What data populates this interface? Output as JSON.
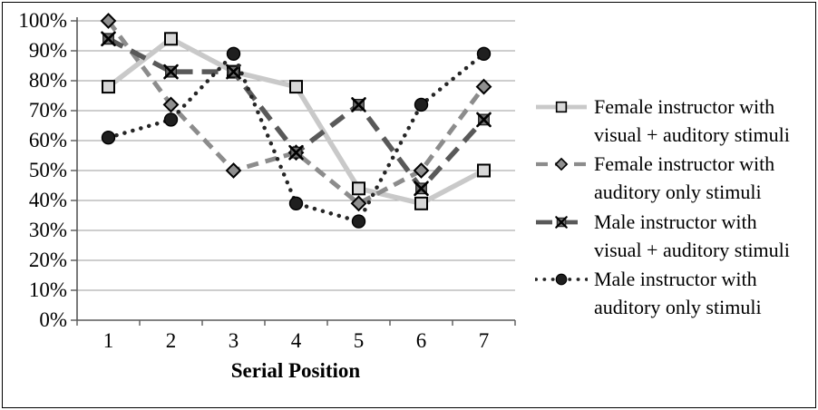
{
  "chart_data": {
    "type": "line",
    "title": "",
    "xlabel": "Serial Position",
    "ylabel": "",
    "x": [
      "1",
      "2",
      "3",
      "4",
      "5",
      "6",
      "7"
    ],
    "y_ticks": [
      "100%",
      "90%",
      "80%",
      "70%",
      "60%",
      "50%",
      "40%",
      "30%",
      "20%",
      "10%",
      "0%"
    ],
    "ylim": [
      0,
      100
    ],
    "grid": "horizontal",
    "grid_color": "#9e9e9e",
    "axis_color": "#595959",
    "legend_position": "right",
    "series": [
      {
        "id": "female-visual-auditory",
        "name": "Female instructor with visual + auditory stimuli",
        "label_lines": [
          "Female instructor with",
          "visual + auditory stimuli"
        ],
        "marker": "square",
        "line_style": "solid",
        "color": "#c9c9c9",
        "marker_fill": "#d8d8d8",
        "values": [
          78,
          94,
          83,
          78,
          44,
          39,
          50
        ]
      },
      {
        "id": "female-auditory-only",
        "name": "Female instructor with auditory only stimuli",
        "label_lines": [
          "Female instructor with",
          "auditory only stimuli"
        ],
        "marker": "diamond",
        "line_style": "dashed",
        "color": "#8c8c8c",
        "marker_fill": "#8f8f8f",
        "values": [
          100,
          72,
          50,
          56,
          39,
          50,
          78
        ]
      },
      {
        "id": "male-visual-auditory",
        "name": "Male instructor with visual + auditory stimuli",
        "label_lines": [
          "Male instructor with",
          "visual + auditory stimuli"
        ],
        "marker": "x-square",
        "line_style": "long-dash",
        "color": "#595959",
        "marker_fill": "#6e6e6e",
        "values": [
          94,
          83,
          83,
          56,
          72,
          44,
          67
        ]
      },
      {
        "id": "male-auditory-only",
        "name": "Male instructor with auditory only stimuli",
        "label_lines": [
          "Male instructor with",
          "auditory only stimuli"
        ],
        "marker": "circle",
        "line_style": "dotted",
        "color": "#262626",
        "marker_fill": "#1f1f1f",
        "values": [
          61,
          67,
          89,
          39,
          33,
          72,
          89
        ]
      }
    ]
  }
}
